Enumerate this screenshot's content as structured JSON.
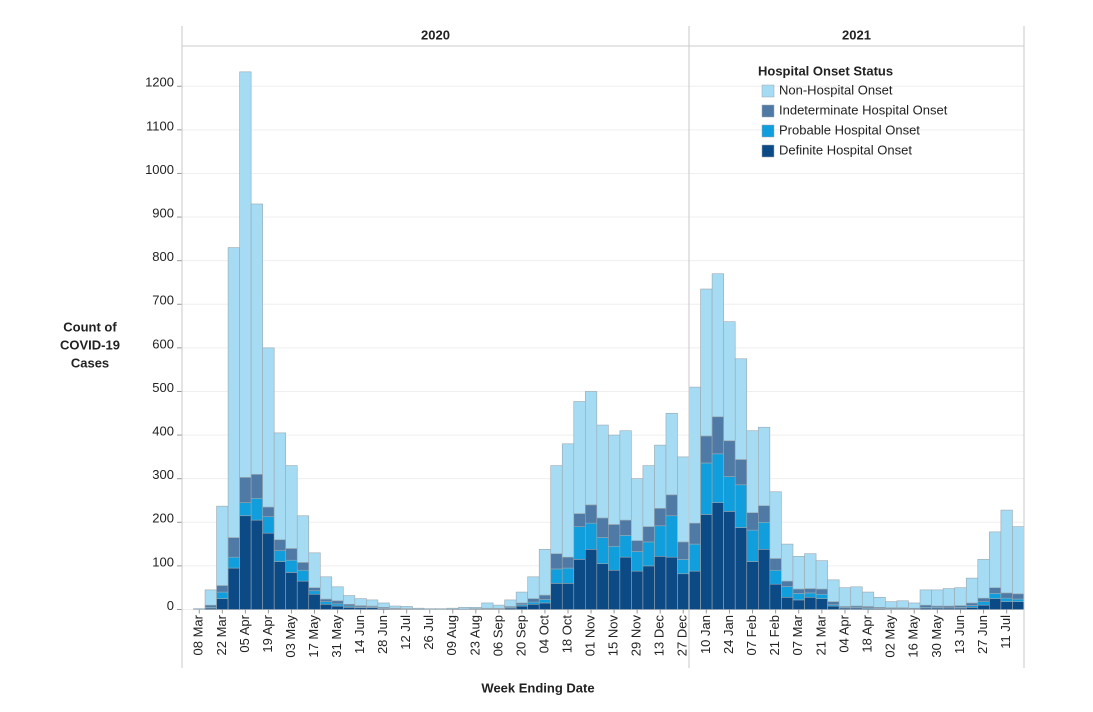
{
  "chart_data": {
    "type": "bar",
    "stacked": true,
    "y_label": [
      "Count of",
      "COVID-19",
      "Cases"
    ],
    "x_label": "Week Ending Date",
    "legend_title": "Hospital Onset Status",
    "ylim": [
      0,
      1290
    ],
    "yticks": [
      0,
      100,
      200,
      300,
      400,
      500,
      600,
      700,
      800,
      900,
      1000,
      1100,
      1200
    ],
    "grid": true,
    "series_legend": [
      {
        "name": "Non-Hospital Onset",
        "color": "#a5dcf3"
      },
      {
        "name": "Indeterminate Hospital Onset",
        "color": "#4f7aa6"
      },
      {
        "name": "Probable Hospital Onset",
        "color": "#109fdc"
      },
      {
        "name": "Definite Hospital Onset",
        "color": "#0c4a86"
      }
    ],
    "panels": [
      {
        "title": "2020",
        "categories": [
          null,
          "08 Mar",
          null,
          "22 Mar",
          null,
          "05 Apr",
          null,
          "19 Apr",
          null,
          "03 May",
          null,
          "17 May",
          null,
          "31 May",
          null,
          "14 Jun",
          null,
          "28 Jun",
          null,
          "12 Jul",
          null,
          "26 Jul",
          null,
          "09 Aug",
          null,
          "23 Aug",
          null,
          "06 Sep",
          null,
          "20 Sep",
          null,
          "04 Oct",
          null,
          "18 Oct",
          null,
          "01 Nov",
          null,
          "15 Nov",
          null,
          "29 Nov",
          null,
          "13 Dec",
          null,
          "27 Dec"
        ],
        "series": [
          {
            "values": [
              0,
              2,
              35,
              182,
              665,
              930,
              620,
              365,
              245,
              190,
              107,
              80,
              51,
              32,
              20,
              16,
              14,
              10,
              5,
              5,
              2,
              2,
              2,
              2,
              4,
              3,
              12,
              7,
              15,
              25,
              50,
              105,
              202,
              260,
              257,
              260,
              213,
              205,
              205,
              142,
              140,
              145,
              187,
              195
            ]
          },
          {
            "values": [
              0,
              0,
              5,
              15,
              45,
              58,
              55,
              22,
              25,
              27,
              18,
              7,
              6,
              7,
              4,
              3,
              2,
              2,
              1,
              1,
              1,
              0,
              0,
              1,
              1,
              1,
              1,
              1,
              2,
              4,
              8,
              10,
              35,
              25,
              30,
              42,
              45,
              50,
              35,
              25,
              35,
              40,
              48,
              40
            ]
          },
          {
            "values": [
              0,
              0,
              2,
              15,
              25,
              30,
              50,
              38,
              25,
              28,
              25,
              8,
              6,
              5,
              3,
              2,
              2,
              1,
              1,
              0,
              0,
              0,
              0,
              0,
              0,
              0,
              1,
              1,
              2,
              3,
              5,
              8,
              33,
              35,
              75,
              60,
              60,
              55,
              50,
              45,
              55,
              70,
              95,
              33
            ]
          },
          {
            "values": [
              0,
              0,
              3,
              25,
              95,
              215,
              205,
              175,
              110,
              85,
              65,
              35,
              12,
              8,
              5,
              4,
              4,
              2,
              1,
              1,
              0,
              0,
              0,
              0,
              0,
              1,
              1,
              1,
              3,
              8,
              12,
              15,
              60,
              60,
              115,
              138,
              105,
              90,
              120,
              88,
              100,
              122,
              120,
              82
            ]
          }
        ]
      },
      {
        "title": "2021",
        "categories": [
          null,
          "10 Jan",
          null,
          "24 Jan",
          null,
          "07 Feb",
          null,
          "21 Feb",
          null,
          "07 Mar",
          null,
          "21 Mar",
          null,
          "04 Apr",
          null,
          "18 Apr",
          null,
          "02 May",
          null,
          "16 May",
          null,
          "30 May",
          null,
          "13 Jun",
          null,
          "27 Jun",
          null,
          "11 Jul",
          null
        ],
        "series": [
          {
            "values": [
              312,
              337,
              328,
              273,
              231,
              188,
              180,
              153,
              85,
              75,
              80,
              65,
              50,
              43,
              44,
              33,
              23,
              14,
              16,
              12,
              35,
              37,
              40,
              41,
              57,
              89,
              128,
              190,
              154
            ]
          },
          {
            "values": [
              48,
              62,
              85,
              82,
              58,
              40,
              38,
              27,
              12,
              10,
              10,
              12,
              7,
              2,
              3,
              3,
              2,
              2,
              2,
              2,
              5,
              3,
              4,
              4,
              6,
              8,
              13,
              12,
              12
            ]
          },
          {
            "values": [
              62,
              118,
              112,
              80,
              98,
              72,
              62,
              32,
              25,
              15,
              10,
              10,
              3,
              2,
              2,
              2,
              1,
              1,
              1,
              0,
              2,
              2,
              1,
              2,
              4,
              8,
              12,
              8,
              6
            ]
          },
          {
            "values": [
              88,
              218,
              245,
              225,
              188,
              110,
              138,
              58,
              28,
              22,
              28,
              25,
              8,
              3,
              3,
              2,
              2,
              1,
              1,
              1,
              3,
              3,
              3,
              3,
              5,
              10,
              25,
              18,
              18
            ]
          }
        ]
      }
    ]
  }
}
